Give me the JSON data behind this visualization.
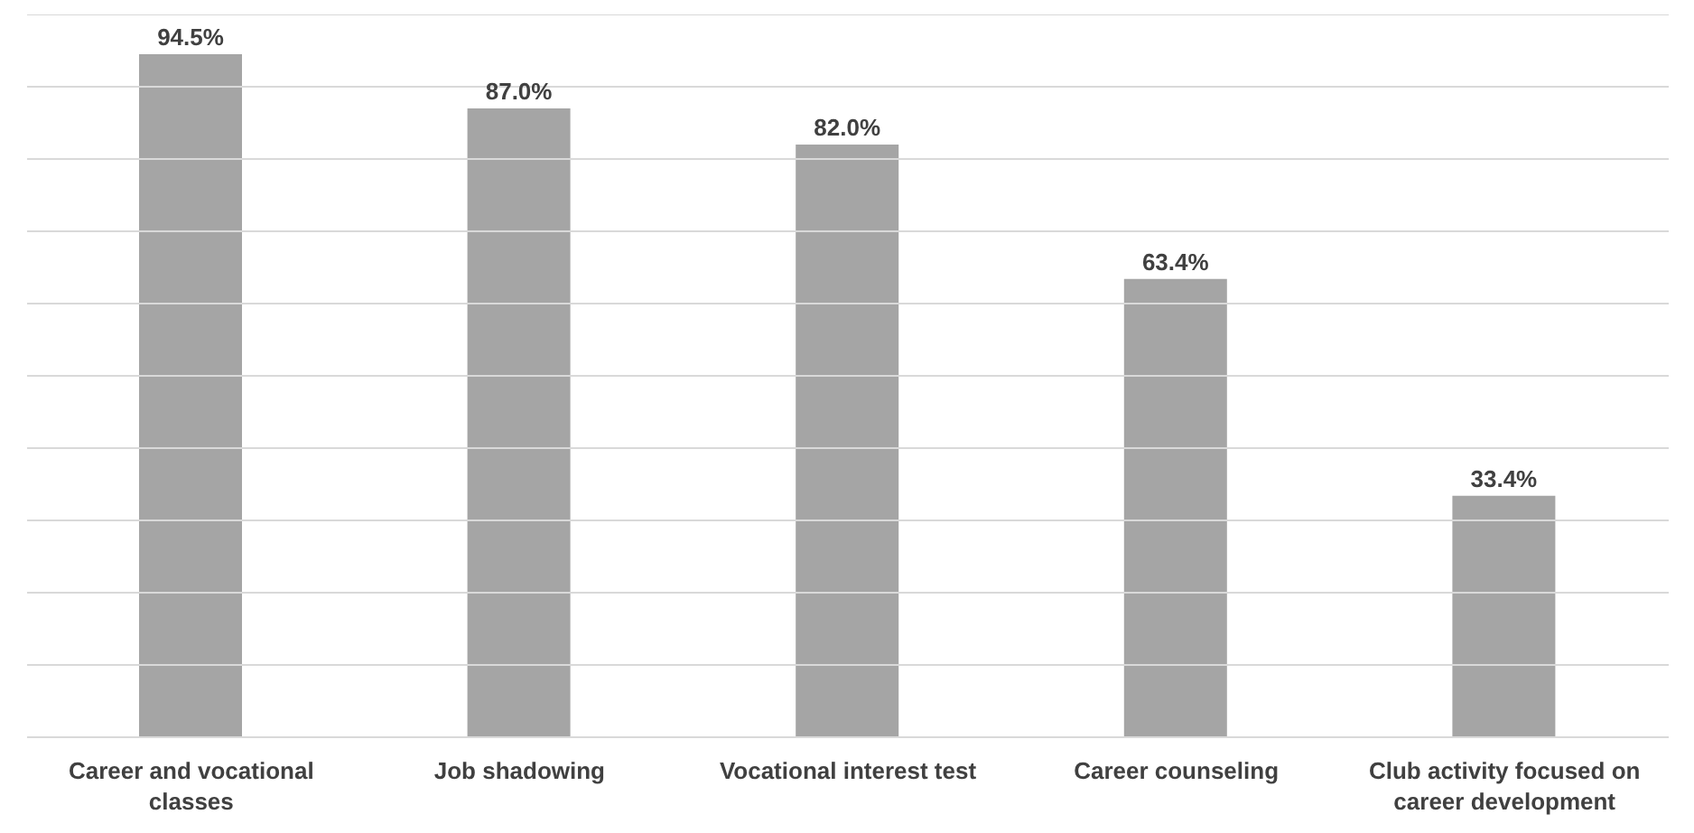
{
  "chart_data": {
    "type": "bar",
    "categories": [
      "Career and vocational classes",
      "Job shadowing",
      "Vocational interest test",
      "Career counseling",
      "Club activity focused on career development"
    ],
    "values": [
      94.5,
      87.0,
      82.0,
      63.4,
      33.4
    ],
    "value_labels": [
      "94.5%",
      "87.0%",
      "82.0%",
      "63.4%",
      "33.4%"
    ],
    "color": "#a5a5a5",
    "ylim": [
      0,
      100
    ],
    "yticks": [
      {
        "value": 0,
        "label": null
      },
      {
        "value": 10,
        "label": null
      },
      {
        "value": 20,
        "label": null
      },
      {
        "value": 30,
        "label": null
      },
      {
        "value": 40,
        "label": null
      },
      {
        "value": 50,
        "label": null
      },
      {
        "value": 60,
        "label": null
      },
      {
        "value": 70,
        "label": null
      },
      {
        "value": 80,
        "label": null
      },
      {
        "value": 90,
        "label": null
      },
      {
        "value": 100,
        "label": null
      }
    ],
    "grid": "y",
    "tick_labels": "x",
    "legend": false
  }
}
